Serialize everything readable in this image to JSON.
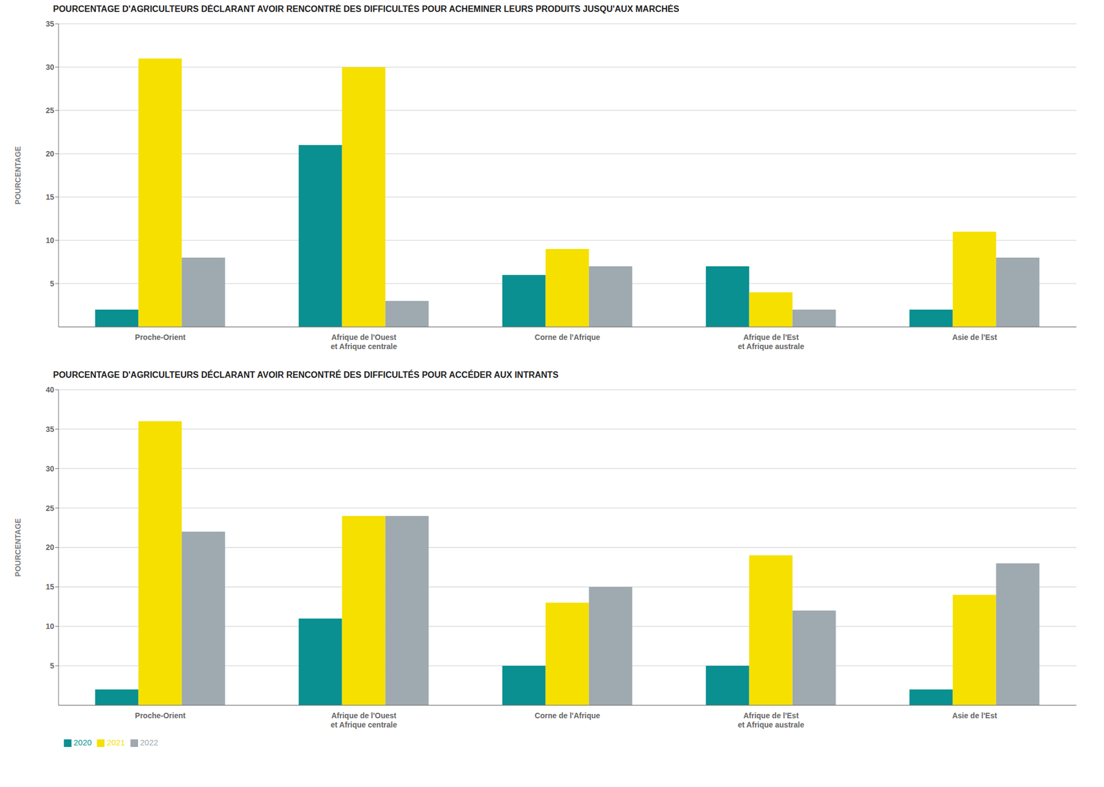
{
  "chart_data": [
    {
      "type": "bar",
      "title": "POURCENTAGE D'AGRICULTEURS DÉCLARANT AVOIR RENCONTRÉ DES DIFFICULTÉS POUR ACHEMINER LEURS PRODUITS JUSQU'AUX MARCHÉS",
      "categories": [
        "Proche-Orient",
        "Afrique de l'Ouest\net Afrique centrale",
        "Corne de l'Afrique",
        "Afrique de l'Est\net Afrique australe",
        "Asie de l'Est"
      ],
      "y_label": "POURCENTAGE",
      "series": [
        {
          "name": "2020",
          "color": "#0a9090",
          "values": [
            2,
            21,
            6,
            7,
            2
          ]
        },
        {
          "name": "2021",
          "color": "#F5E000",
          "values": [
            31,
            30,
            9,
            4,
            11
          ]
        },
        {
          "name": "2022",
          "color": "#9EA9B0",
          "values": [
            8,
            3,
            7,
            2,
            8
          ]
        }
      ],
      "ylim": [
        0,
        35
      ],
      "yticks": [
        5,
        10,
        15,
        20,
        25,
        30,
        35
      ],
      "grid": true
    },
    {
      "type": "bar",
      "title": "POURCENTAGE D'AGRICULTEURS DÉCLARANT AVOIR RENCONTRÉ DES DIFFICULTÉS POUR ACCÉDER AUX INTRANTS",
      "categories": [
        "Proche-Orient",
        "Afrique de l'Ouest\net Afrique centrale",
        "Corne de l'Afrique",
        "Afrique de l'Est\net Afrique australe",
        "Asie de l'Est"
      ],
      "y_label": "POURCENTAGE",
      "series": [
        {
          "name": "2020",
          "color": "#0a9090",
          "values": [
            2,
            11,
            5,
            5,
            2
          ]
        },
        {
          "name": "2021",
          "color": "#F5E000",
          "values": [
            36,
            24,
            13,
            19,
            14
          ]
        },
        {
          "name": "2022",
          "color": "#9EA9B0",
          "values": [
            22,
            24,
            15,
            12,
            18
          ]
        }
      ],
      "ylim": [
        0,
        40
      ],
      "yticks": [
        5,
        10,
        15,
        20,
        25,
        30,
        35,
        40
      ],
      "grid": true,
      "legend": "lower left"
    }
  ]
}
